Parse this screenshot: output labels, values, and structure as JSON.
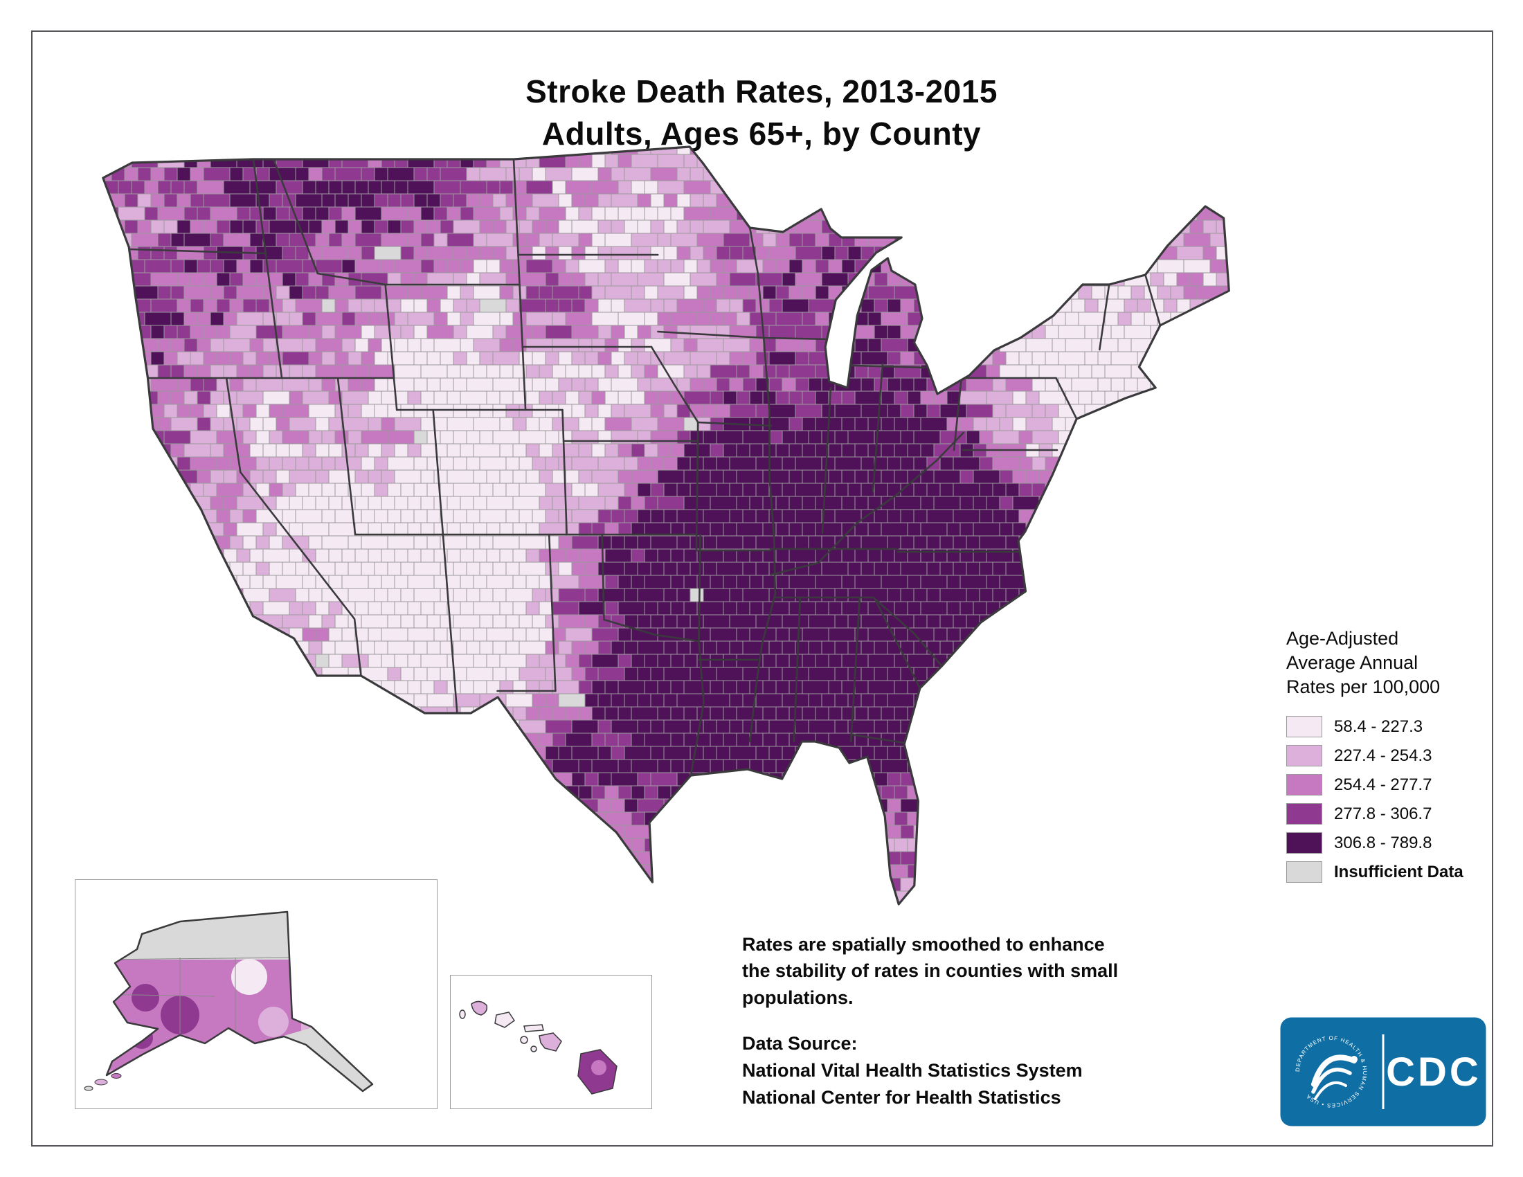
{
  "title": {
    "line1": "Stroke Death Rates, 2013-2015",
    "line2": "Adults, Ages 65+, by County"
  },
  "legend": {
    "heading_lines": [
      "Age-Adjusted",
      "Average Annual",
      "Rates per 100,000"
    ],
    "classes": [
      {
        "label": "58.4 - 227.3",
        "color": "#f5eaf4"
      },
      {
        "label": "227.4 - 254.3",
        "color": "#ddafdb"
      },
      {
        "label": "254.4 - 277.7",
        "color": "#c679c1"
      },
      {
        "label": "277.8 - 306.7",
        "color": "#8f3a90"
      },
      {
        "label": "306.8 - 789.8",
        "color": "#4f1259"
      }
    ],
    "insufficient": {
      "label": "Insufficient Data",
      "color": "#d9d9d9"
    }
  },
  "map": {
    "outline_color": "#3a3a3c",
    "state_line_color": "#3a3a3c",
    "county_line_color": "#9b9b9b"
  },
  "notes": {
    "smoothing_lines": [
      "Rates are spatially smoothed to enhance",
      "the stability of rates in counties with small",
      "populations."
    ],
    "data_source_heading": "Data Source:",
    "data_source_lines": [
      "National Vital Health Statistics System",
      "National Center for Health Statistics"
    ]
  },
  "logo": {
    "cdc_text": "CDC",
    "seal_text": "DEPARTMENT OF HEALTH & HUMAN SERVICES • USA",
    "background_color": "#0f6fa5"
  }
}
